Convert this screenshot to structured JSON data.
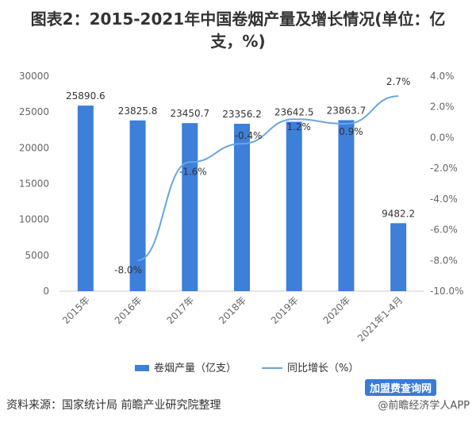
{
  "header": {
    "title_line1": "图表2：2015-2021年中国卷烟产量及增长情况(单位：亿",
    "title_line2": "支，%)"
  },
  "source": "资料来源：国家统计局 前瞻产业研究院整理",
  "footer_right": "@前瞻经济学人APP",
  "badge": "加盟费查询网",
  "colors": {
    "bar": "#3d7fd9",
    "line": "#6aa6e0",
    "axis_text": "#666666"
  },
  "chart_data": {
    "type": "bar",
    "categories": [
      "2015年",
      "2016年",
      "2017年",
      "2018年",
      "2019年",
      "2020年",
      "2021年1-4月"
    ],
    "series": [
      {
        "name": "卷烟产量（亿支）",
        "type": "bar",
        "axis": "left",
        "values": [
          25890.6,
          23825.8,
          23450.7,
          23356.2,
          23642.5,
          23863.7,
          9482.2
        ],
        "labels": [
          "25890.6",
          "23825.8",
          "23450.7",
          "23356.2",
          "23642.5",
          "23863.7",
          "9482.2"
        ]
      },
      {
        "name": "同比增长（%）",
        "type": "line",
        "axis": "right",
        "values": [
          null,
          -8.0,
          -1.6,
          -0.4,
          1.2,
          0.9,
          2.7
        ],
        "labels": [
          "",
          "-8.0%",
          "-1.6%",
          "-0.4%",
          "1.2%",
          "0.9%",
          "2.7%"
        ]
      }
    ],
    "y_left": {
      "min": 0,
      "max": 30000,
      "ticks": [
        0,
        5000,
        10000,
        15000,
        20000,
        25000,
        30000
      ],
      "tick_labels": [
        "0",
        "5000",
        "10000",
        "15000",
        "20000",
        "25000",
        "30000"
      ]
    },
    "y_right": {
      "min": -10,
      "max": 4,
      "ticks": [
        -10,
        -8,
        -6,
        -4,
        -2,
        0,
        2,
        4
      ],
      "tick_labels": [
        "-10.0%",
        "-8.0%",
        "-6.0%",
        "-4.0%",
        "-2.0%",
        "0.0%",
        "2.0%",
        "4.0%"
      ]
    },
    "legend": {
      "position": "bottom",
      "items": [
        "卷烟产量（亿支）",
        "同比增长（%）"
      ]
    },
    "grid": false
  }
}
